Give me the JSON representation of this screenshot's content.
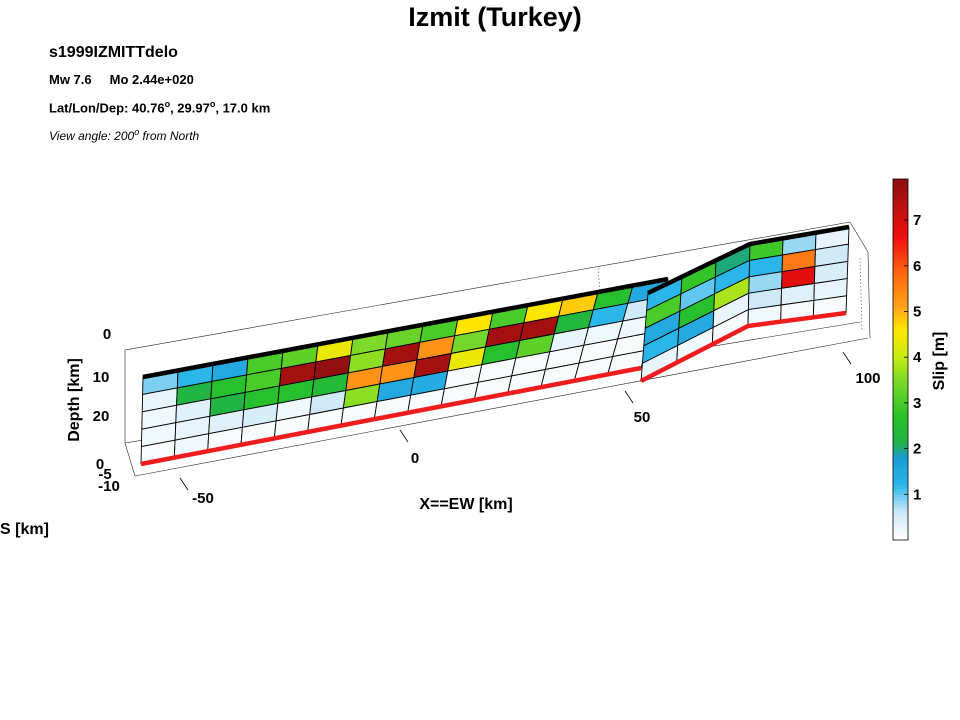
{
  "header": {
    "title": "Izmit (Turkey)",
    "event_id": "s1999IZMITTdelo",
    "magnitude": "Mw 7.6",
    "moment": "Mo 2.44e+020",
    "location_label": "Lat/Lon/Dep: 40.76",
    "lat_deg": "o",
    "lon_text": ", 29.97",
    "lon_deg": "o",
    "depth_text": ", 17.0 km",
    "view_prefix": "View angle: 200",
    "view_deg": "o",
    "view_suffix": " from North"
  },
  "colors": {
    "top_edge": "#000000",
    "bottom_edge": "#ee1c1c",
    "grid": "#000000"
  },
  "colorbar": {
    "label": "Slip [m]",
    "ticks": [
      "1",
      "2",
      "3",
      "4",
      "5",
      "6",
      "7"
    ],
    "range": [
      0,
      7.9
    ],
    "colormap": [
      [
        0.0,
        "#ffffff"
      ],
      [
        0.6,
        "#cfe9f7"
      ],
      [
        1.2,
        "#2bb6ea"
      ],
      [
        1.8,
        "#1a9bd6"
      ],
      [
        2.1,
        "#20b04a"
      ],
      [
        2.7,
        "#28c228"
      ],
      [
        3.5,
        "#7fd92a"
      ],
      [
        4.0,
        "#c6ec12"
      ],
      [
        4.6,
        "#ffe600"
      ],
      [
        5.1,
        "#ffa31a"
      ],
      [
        5.8,
        "#ff6a10"
      ],
      [
        6.6,
        "#f20f0f"
      ],
      [
        7.9,
        "#8c1010"
      ]
    ]
  },
  "chart_data": {
    "type": "heatmap",
    "title": "Izmit (Turkey)",
    "xlabel": "X==EW [km]",
    "ylabel": "Depth [km]",
    "zlabel_partial": "S [km]",
    "xticks": [
      "-50",
      "0",
      "50",
      "100"
    ],
    "depth_ticks": [
      "0",
      "10",
      "20"
    ],
    "ns_ticks": [
      "0",
      "-5",
      "-10"
    ],
    "units": "Slip [m]",
    "segments": [
      {
        "name": "",
        "rows": 5,
        "cols": 15,
        "slip": [
          [
            0.9,
            1.2,
            1.5,
            3.0,
            3.2,
            4.4,
            3.5,
            3.3,
            3.0,
            4.6,
            3.0,
            4.6,
            4.8,
            2.6,
            1.5
          ],
          [
            0.3,
            2.2,
            2.6,
            3.0,
            7.6,
            7.8,
            3.6,
            7.6,
            5.3,
            3.4,
            7.6,
            7.6,
            2.3,
            1.2,
            0.6
          ],
          [
            0.2,
            0.4,
            2.2,
            2.6,
            2.6,
            2.4,
            5.3,
            5.3,
            7.6,
            4.4,
            2.6,
            3.2,
            0.3,
            0.2,
            0.2
          ],
          [
            0.2,
            0.3,
            0.4,
            0.5,
            0.2,
            0.6,
            3.6,
            1.5,
            1.4,
            0.1,
            0.1,
            0.1,
            0.1,
            0.1,
            0.1
          ],
          [
            0.1,
            0.2,
            0.1,
            0.1,
            0.1,
            0.1,
            0.1,
            0.1,
            0.1,
            0.1,
            0.1,
            0.1,
            0.1,
            0.1,
            0.1
          ]
        ]
      },
      {
        "name": "",
        "rows": 5,
        "cols": 3,
        "slip": [
          [
            1.2,
            2.8,
            2.0
          ],
          [
            3.0,
            1.0,
            1.2
          ],
          [
            1.5,
            2.6,
            3.8
          ],
          [
            1.2,
            1.5,
            0.3
          ],
          [
            0.3,
            0.2,
            0.1
          ]
        ]
      },
      {
        "name": "",
        "rows": 5,
        "cols": 3,
        "slip": [
          [
            2.9,
            0.8,
            0.3
          ],
          [
            1.2,
            5.6,
            0.6
          ],
          [
            0.8,
            6.8,
            0.5
          ],
          [
            0.6,
            0.4,
            0.3
          ],
          [
            0.2,
            0.1,
            0.1
          ]
        ]
      }
    ]
  }
}
